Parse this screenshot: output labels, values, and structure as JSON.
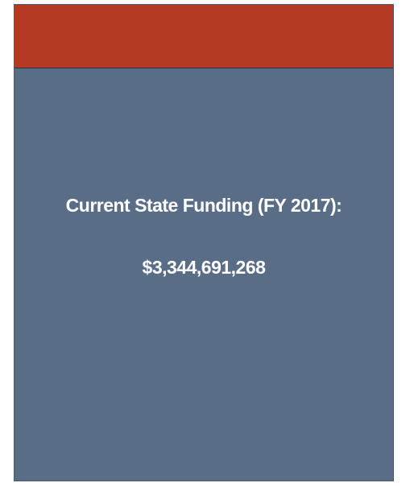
{
  "card": {
    "label": "Current State Funding (FY 2017):",
    "amount": "$3,344,691,268"
  }
}
